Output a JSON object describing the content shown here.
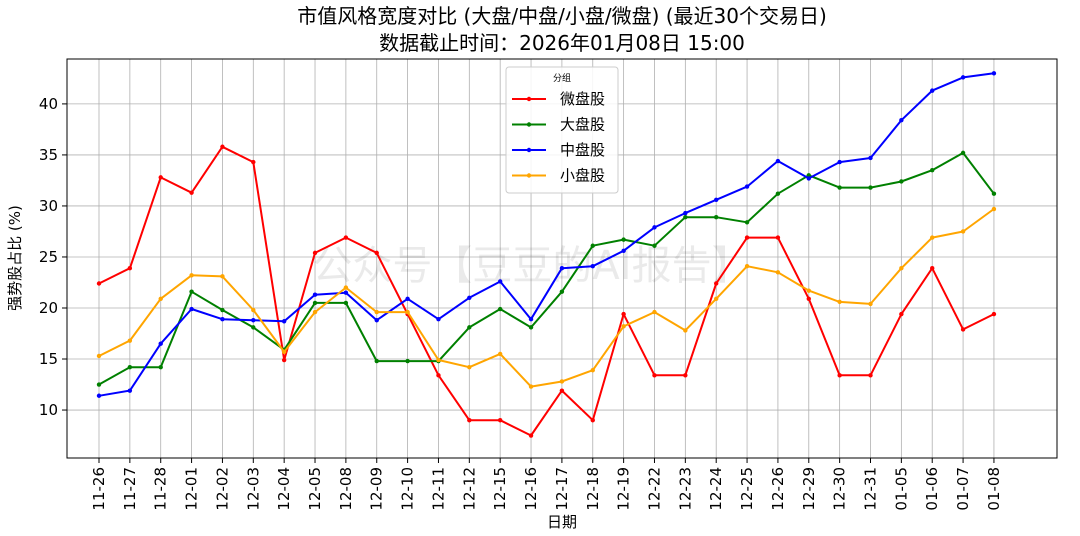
{
  "chart_data": {
    "type": "line",
    "title": "市值风格宽度对比 (大盘/中盘/小盘/微盘) (最近30个交易日)",
    "subtitle": "数据截止时间：2026年01月08日 15:00",
    "xlabel": "日期",
    "ylabel": "强势股占比 (%)",
    "ylim": [
      5.3,
      44.4
    ],
    "yticks": [
      10,
      15,
      20,
      25,
      30,
      35,
      40
    ],
    "grid": true,
    "legend_title": "分组",
    "legend_position": "top-center",
    "watermark": "公众号【豆豆的AI报告】",
    "categories": [
      "11-26",
      "11-27",
      "11-28",
      "12-01",
      "12-02",
      "12-03",
      "12-04",
      "12-05",
      "12-08",
      "12-09",
      "12-10",
      "12-11",
      "12-12",
      "12-15",
      "12-16",
      "12-17",
      "12-18",
      "12-19",
      "12-22",
      "12-23",
      "12-24",
      "12-25",
      "12-26",
      "12-29",
      "12-30",
      "12-31",
      "01-05",
      "01-06",
      "01-07",
      "01-08"
    ],
    "series": [
      {
        "name": "微盘股",
        "color": "#ff0000",
        "values": [
          22.4,
          23.9,
          32.8,
          31.3,
          35.8,
          34.3,
          14.9,
          25.4,
          26.9,
          25.4,
          19.4,
          13.4,
          9.0,
          9.0,
          7.5,
          11.9,
          9.0,
          19.4,
          13.4,
          13.4,
          22.4,
          26.9,
          26.9,
          20.9,
          13.4,
          13.4,
          19.4,
          23.9,
          17.9,
          19.4
        ]
      },
      {
        "name": "大盘股",
        "color": "#008000",
        "values": [
          12.5,
          14.2,
          14.2,
          21.6,
          19.8,
          18.1,
          15.9,
          20.5,
          20.5,
          14.8,
          14.8,
          14.8,
          18.1,
          19.9,
          18.1,
          21.6,
          26.1,
          26.7,
          26.1,
          28.9,
          28.9,
          28.4,
          31.2,
          33.0,
          31.8,
          31.8,
          32.4,
          33.5,
          35.2,
          31.2
        ]
      },
      {
        "name": "中盘股",
        "color": "#0000ff",
        "values": [
          11.4,
          11.9,
          16.5,
          19.9,
          18.9,
          18.8,
          18.7,
          21.3,
          21.5,
          18.8,
          20.9,
          18.9,
          21.0,
          22.6,
          18.9,
          23.9,
          24.1,
          25.6,
          27.9,
          29.3,
          30.6,
          31.9,
          34.4,
          32.7,
          34.3,
          34.7,
          38.4,
          41.3,
          42.6,
          43.0
        ]
      },
      {
        "name": "小盘股",
        "color": "#ffa500",
        "values": [
          15.3,
          16.8,
          20.9,
          23.2,
          23.1,
          19.8,
          15.7,
          19.6,
          22.0,
          19.6,
          19.6,
          14.9,
          14.2,
          15.5,
          12.3,
          12.8,
          13.9,
          18.2,
          19.6,
          17.8,
          20.9,
          24.1,
          23.5,
          21.7,
          20.6,
          20.4,
          23.9,
          26.9,
          27.5,
          29.7
        ]
      }
    ],
    "legend_order": [
      0,
      1,
      2,
      3
    ]
  }
}
